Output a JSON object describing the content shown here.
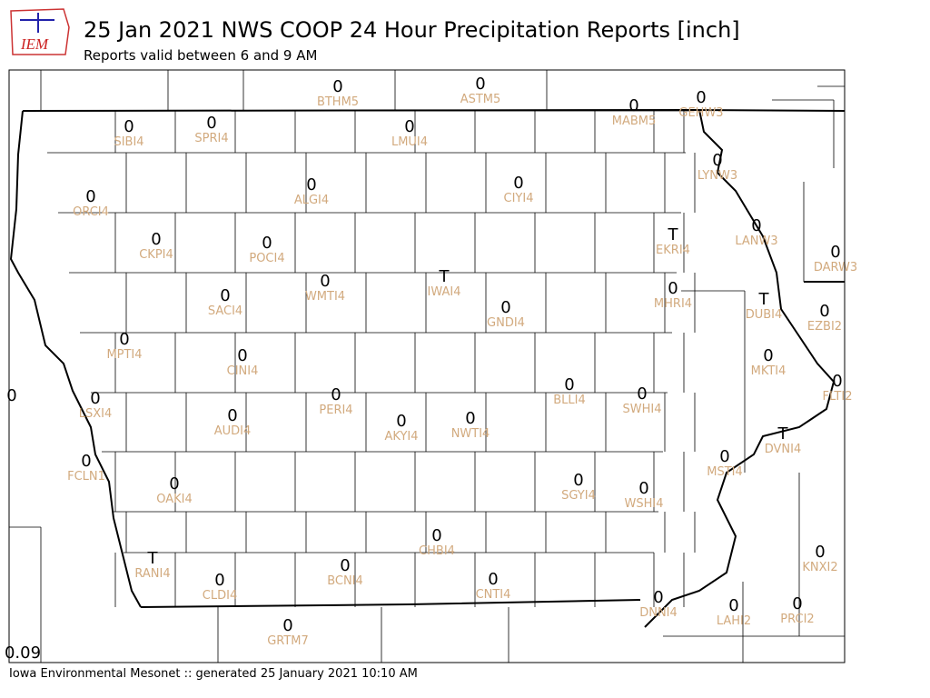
{
  "header": {
    "logo": "IEM",
    "title": "25 Jan 2021 NWS COOP 24 Hour Precipitation Reports [inch]",
    "subtitle": "Reports valid between 6 and 9 AM"
  },
  "stations": [
    {
      "value": "0",
      "id": "BTHM5"
    },
    {
      "value": "0",
      "id": "ASTM5"
    },
    {
      "value": "0",
      "id": "MABM5"
    },
    {
      "value": "0",
      "id": "GEHW3"
    },
    {
      "value": "0",
      "id": "SIBI4"
    },
    {
      "value": "0",
      "id": "SPRI4"
    },
    {
      "value": "0",
      "id": "LMUI4"
    },
    {
      "value": "0",
      "id": "LYNW3"
    },
    {
      "value": "0",
      "id": "ORCI4"
    },
    {
      "value": "0",
      "id": "ALGI4"
    },
    {
      "value": "0",
      "id": "CIYI4"
    },
    {
      "value": "T",
      "id": "EKRI4"
    },
    {
      "value": "0",
      "id": "LANW3"
    },
    {
      "value": "0",
      "id": "DARW3"
    },
    {
      "value": "0",
      "id": "CKPI4"
    },
    {
      "value": "0",
      "id": "POCI4"
    },
    {
      "value": "0",
      "id": "WMTI4"
    },
    {
      "value": "T",
      "id": "IWAI4"
    },
    {
      "value": "0",
      "id": "SACI4"
    },
    {
      "value": "0",
      "id": "GNDI4"
    },
    {
      "value": "0",
      "id": "MHRI4"
    },
    {
      "value": "T",
      "id": "DUBI4"
    },
    {
      "value": "0",
      "id": "EZBI2"
    },
    {
      "value": "0",
      "id": "MPTI4"
    },
    {
      "value": "0",
      "id": "CINI4"
    },
    {
      "value": "0",
      "id": "MKTI4"
    },
    {
      "value": "0",
      "id": "FLTI2"
    },
    {
      "value": "0"
    },
    {
      "value": "0",
      "id": "LSXI4"
    },
    {
      "value": "0",
      "id": "PERI4"
    },
    {
      "value": "0",
      "id": "BLLI4"
    },
    {
      "value": "0",
      "id": "SWHI4"
    },
    {
      "value": "0",
      "id": "AUDI4"
    },
    {
      "value": "0",
      "id": "AKYI4"
    },
    {
      "value": "0",
      "id": "NWTI4"
    },
    {
      "value": "T",
      "id": "DVNI4"
    },
    {
      "value": "0",
      "id": "MSTI4"
    },
    {
      "value": "0",
      "id": "FCLN1"
    },
    {
      "value": "0",
      "id": "OAKI4"
    },
    {
      "value": "0",
      "id": "SGYI4"
    },
    {
      "value": "0",
      "id": "WSHI4"
    },
    {
      "value": "0",
      "id": "CHBI4"
    },
    {
      "value": "0",
      "id": "KNXI2"
    },
    {
      "value": "T",
      "id": "RANI4"
    },
    {
      "value": "0",
      "id": "BCNI4"
    },
    {
      "value": "0",
      "id": "CLDI4"
    },
    {
      "value": "0",
      "id": "CNTI4"
    },
    {
      "value": "0",
      "id": "DNNI4"
    },
    {
      "value": "0",
      "id": "LAHI2"
    },
    {
      "value": "0",
      "id": "PRCI2"
    },
    {
      "value": "0",
      "id": "GRTM7"
    },
    {
      "value": "0.09"
    }
  ],
  "footer": "Iowa Environmental Mesonet :: generated 25 January 2021 10:10 AM"
}
